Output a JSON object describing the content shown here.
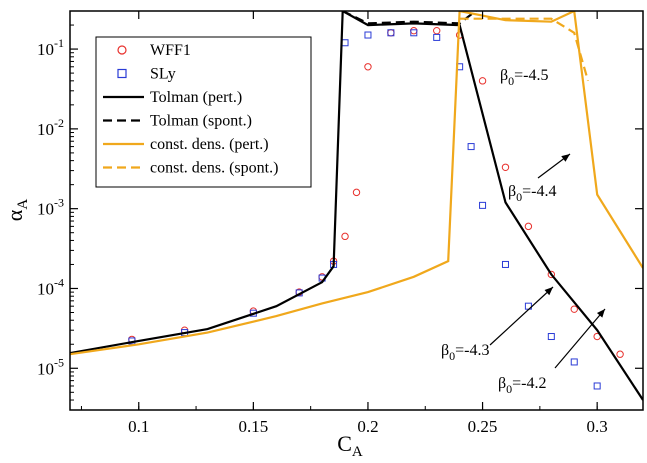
{
  "chart_data": {
    "type": "scatter",
    "xlabel": "C",
    "xlabel_sub": "A",
    "ylabel": "α",
    "ylabel_sub": "A",
    "xlim": [
      0.07,
      0.32
    ],
    "ylim": [
      3e-06,
      0.3
    ],
    "yscale": "log",
    "x_ticks": [
      0.1,
      0.15,
      0.2,
      0.25,
      0.3
    ],
    "x_tick_labels": [
      "0.1",
      "0.15",
      "0.2",
      "0.25",
      "0.3"
    ],
    "y_ticks": [
      1e-05,
      0.0001,
      0.001,
      0.01,
      0.1
    ],
    "y_tick_labels": [
      {
        "base": "10",
        "exp": "-5"
      },
      {
        "base": "10",
        "exp": "-4"
      },
      {
        "base": "10",
        "exp": "-3"
      },
      {
        "base": "10",
        "exp": "-2"
      },
      {
        "base": "10",
        "exp": "-1"
      }
    ],
    "grid": false,
    "legend_position": "top-left",
    "colors": {
      "wff1": "#e8302c",
      "sly": "#2a3bd6",
      "tolman": "#000000",
      "const_dens": "#f0a81c"
    },
    "legend": [
      {
        "label": "WFF1",
        "style": "circle"
      },
      {
        "label": "SLy",
        "style": "square"
      },
      {
        "label": "Tolman (pert.)",
        "style": "solid-black"
      },
      {
        "label": "Tolman (spont.)",
        "style": "dashed-black"
      },
      {
        "label": "const. dens. (pert.)",
        "style": "solid-orange"
      },
      {
        "label": "const. dens. (spont.)",
        "style": "dashed-orange"
      }
    ],
    "annotations": [
      {
        "greek": "β",
        "sub": "0",
        "value": "=-4.5"
      },
      {
        "greek": "β",
        "sub": "0",
        "value": "=-4.4"
      },
      {
        "greek": "β",
        "sub": "0",
        "value": "=-4.3"
      },
      {
        "greek": "β",
        "sub": "0",
        "value": "=-4.2"
      }
    ],
    "series": [
      {
        "name": "WFF1",
        "marker": "circle",
        "color": "#e8302c",
        "x": [
          0.097,
          0.12,
          0.15,
          0.17,
          0.18,
          0.185,
          0.19,
          0.195,
          0.2,
          0.21,
          0.22,
          0.23,
          0.24,
          0.25,
          0.26,
          0.27,
          0.28,
          0.29,
          0.3,
          0.31
        ],
        "y": [
          2.3e-05,
          3e-05,
          5.2e-05,
          9e-05,
          0.00014,
          0.00022,
          0.00045,
          0.0016,
          0.06,
          0.16,
          0.17,
          0.17,
          0.15,
          0.04,
          0.0033,
          0.0006,
          0.00015,
          5.5e-05,
          2.5e-05,
          1.5e-05
        ]
      },
      {
        "name": "SLy",
        "marker": "square",
        "color": "#2a3bd6",
        "x": [
          0.097,
          0.12,
          0.15,
          0.17,
          0.18,
          0.185,
          0.19,
          0.2,
          0.21,
          0.22,
          0.23,
          0.24,
          0.245,
          0.25,
          0.26,
          0.27,
          0.28,
          0.29,
          0.3
        ],
        "y": [
          2.2e-05,
          2.8e-05,
          4.9e-05,
          8.8e-05,
          0.000135,
          0.0002,
          0.12,
          0.15,
          0.16,
          0.16,
          0.14,
          0.06,
          0.006,
          0.0011,
          0.0002,
          6e-05,
          2.5e-05,
          1.2e-05,
          6e-06
        ]
      },
      {
        "name": "Tolman (pert.)",
        "line": "solid",
        "color": "#000000",
        "x": [
          0.07,
          0.1,
          0.13,
          0.16,
          0.18,
          0.185,
          0.189,
          0.2,
          0.22,
          0.24,
          0.26,
          0.28,
          0.3,
          0.32
        ],
        "y": [
          1.55e-05,
          2.2e-05,
          3.1e-05,
          6e-05,
          0.00012,
          0.00019,
          0.3,
          0.2,
          0.21,
          0.2,
          0.0012,
          0.00015,
          3e-05,
          4e-06
        ]
      },
      {
        "name": "Tolman (spont.)",
        "line": "dashed",
        "color": "#000000",
        "x": [
          0.189,
          0.2,
          0.22,
          0.24,
          0.247
        ],
        "y": [
          0.3,
          0.21,
          0.22,
          0.21,
          0.3
        ]
      },
      {
        "name": "const. dens. (pert.)",
        "line": "solid",
        "color": "#f0a81c",
        "x": [
          0.07,
          0.1,
          0.13,
          0.16,
          0.18,
          0.2,
          0.22,
          0.235,
          0.24,
          0.26,
          0.28,
          0.29,
          0.3,
          0.32
        ],
        "y": [
          1.5e-05,
          2e-05,
          2.8e-05,
          4.5e-05,
          6.5e-05,
          9e-05,
          0.00014,
          0.00022,
          0.3,
          0.23,
          0.22,
          0.3,
          0.0015,
          0.00018
        ]
      },
      {
        "name": "const. dens. (spont.)",
        "line": "dashed",
        "color": "#f0a81c",
        "x": [
          0.24,
          0.26,
          0.28,
          0.29,
          0.296
        ],
        "y": [
          0.24,
          0.24,
          0.24,
          0.16,
          0.04
        ]
      }
    ]
  }
}
